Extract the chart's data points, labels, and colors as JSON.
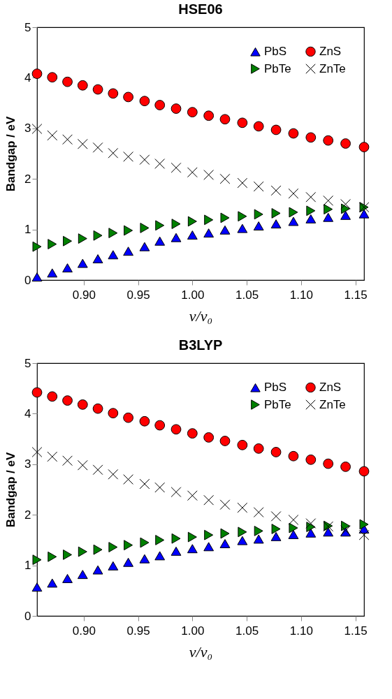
{
  "chart_data": [
    {
      "type": "scatter",
      "title": "HSE06",
      "xlabel": "v/v₀",
      "ylabel": "Bandgap / eV",
      "x": [
        0.857,
        0.871,
        0.885,
        0.899,
        0.913,
        0.927,
        0.941,
        0.956,
        0.97,
        0.985,
        1.0,
        1.015,
        1.03,
        1.046,
        1.061,
        1.077,
        1.093,
        1.109,
        1.125,
        1.141,
        1.158
      ],
      "series": [
        {
          "name": "PbS",
          "color": "#0000ff",
          "marker": "triangle",
          "values": [
            0.06,
            0.14,
            0.24,
            0.33,
            0.42,
            0.5,
            0.57,
            0.66,
            0.77,
            0.84,
            0.89,
            0.93,
            0.99,
            1.02,
            1.07,
            1.11,
            1.16,
            1.21,
            1.24,
            1.28,
            1.31
          ]
        },
        {
          "name": "PbTe",
          "color": "#008000",
          "marker": "triangle-right",
          "values": [
            0.66,
            0.71,
            0.77,
            0.82,
            0.88,
            0.93,
            0.98,
            1.03,
            1.08,
            1.11,
            1.16,
            1.19,
            1.23,
            1.26,
            1.3,
            1.32,
            1.34,
            1.37,
            1.4,
            1.41,
            1.44
          ]
        },
        {
          "name": "ZnS",
          "color": "#ff0000",
          "marker": "circle",
          "values": [
            4.08,
            4.01,
            3.92,
            3.85,
            3.77,
            3.69,
            3.62,
            3.54,
            3.46,
            3.39,
            3.32,
            3.25,
            3.18,
            3.11,
            3.04,
            2.97,
            2.9,
            2.82,
            2.76,
            2.7,
            2.63
          ]
        },
        {
          "name": "ZnTe",
          "color": "#000000",
          "marker": "cross",
          "values": [
            2.99,
            2.86,
            2.78,
            2.69,
            2.62,
            2.51,
            2.44,
            2.38,
            2.3,
            2.22,
            2.13,
            2.08,
            2.0,
            1.92,
            1.85,
            1.77,
            1.71,
            1.64,
            1.57,
            1.5,
            1.44
          ]
        }
      ],
      "xlim": [
        0.857,
        1.158
      ],
      "ylim": [
        0,
        5
      ],
      "xticks": [
        {
          "value": 0.9,
          "label": "0.90"
        },
        {
          "value": 0.95,
          "label": "0.95"
        },
        {
          "value": 1.0,
          "label": "1.00"
        },
        {
          "value": 1.05,
          "label": "1.05"
        },
        {
          "value": 1.1,
          "label": "1.10"
        },
        {
          "value": 1.15,
          "label": "1.15"
        }
      ],
      "yticks": [
        0,
        1,
        2,
        3,
        4,
        5
      ],
      "grid": false,
      "legend": "top right"
    },
    {
      "type": "scatter",
      "title": "B3LYP",
      "xlabel": "v/v₀",
      "ylabel": "Bandgap / eV",
      "x": [
        0.857,
        0.871,
        0.885,
        0.899,
        0.913,
        0.927,
        0.941,
        0.956,
        0.97,
        0.985,
        1.0,
        1.015,
        1.03,
        1.046,
        1.061,
        1.077,
        1.093,
        1.109,
        1.125,
        1.141,
        1.158
      ],
      "series": [
        {
          "name": "PbS",
          "color": "#0000ff",
          "marker": "triangle",
          "values": [
            0.57,
            0.65,
            0.74,
            0.82,
            0.91,
            0.99,
            1.06,
            1.13,
            1.19,
            1.28,
            1.33,
            1.37,
            1.43,
            1.49,
            1.52,
            1.57,
            1.61,
            1.64,
            1.66,
            1.66,
            1.72
          ]
        },
        {
          "name": "PbTe",
          "color": "#008000",
          "marker": "triangle-right",
          "values": [
            1.11,
            1.17,
            1.21,
            1.27,
            1.31,
            1.36,
            1.4,
            1.45,
            1.5,
            1.53,
            1.56,
            1.6,
            1.63,
            1.66,
            1.68,
            1.72,
            1.74,
            1.76,
            1.78,
            1.78,
            1.81
          ]
        },
        {
          "name": "ZnS",
          "color": "#ff0000",
          "marker": "circle",
          "values": [
            4.42,
            4.34,
            4.26,
            4.18,
            4.1,
            4.01,
            3.92,
            3.85,
            3.77,
            3.69,
            3.61,
            3.53,
            3.46,
            3.38,
            3.31,
            3.24,
            3.16,
            3.09,
            3.01,
            2.95,
            2.86
          ]
        },
        {
          "name": "ZnTe",
          "color": "#000000",
          "marker": "cross",
          "values": [
            3.24,
            3.15,
            3.07,
            2.98,
            2.89,
            2.8,
            2.7,
            2.61,
            2.54,
            2.45,
            2.38,
            2.29,
            2.2,
            2.14,
            2.05,
            1.97,
            1.9,
            1.83,
            1.77,
            1.69,
            1.6
          ]
        }
      ],
      "xlim": [
        0.857,
        1.158
      ],
      "ylim": [
        0,
        5
      ],
      "xticks": [
        {
          "value": 0.9,
          "label": "0.90"
        },
        {
          "value": 0.95,
          "label": "0.95"
        },
        {
          "value": 1.0,
          "label": "1.00"
        },
        {
          "value": 1.05,
          "label": "1.05"
        },
        {
          "value": 1.1,
          "label": "1.10"
        },
        {
          "value": 1.15,
          "label": "1.15"
        }
      ],
      "yticks": [
        0,
        1,
        2,
        3,
        4,
        5
      ],
      "grid": false,
      "legend": "top right"
    }
  ]
}
